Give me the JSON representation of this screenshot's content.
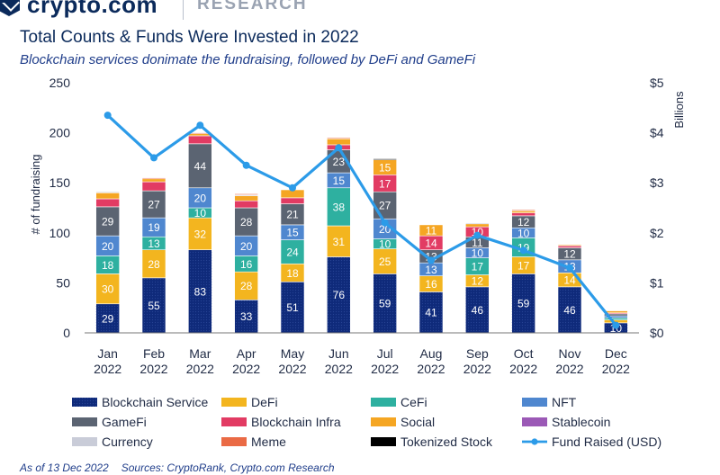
{
  "brand": {
    "name": "crypto.com",
    "section": "RESEARCH"
  },
  "title": "Total Counts & Funds Were Invested in 2022",
  "subtitle": "Blockchain services donimate the fundraising, followed by DeFi and GameFi",
  "footer": {
    "as_of": "As of 13 Dec 2022",
    "sources": "Sources: CryptoRank, Crypto.com Research"
  },
  "chart_data": {
    "type": "bar",
    "stacked": true,
    "categories": [
      "Jan\n2022",
      "Feb\n2022",
      "Mar\n2022",
      "Apr\n2022",
      "May\n2022",
      "Jun\n2022",
      "Jul\n2022",
      "Aug\n2022",
      "Sep\n2022",
      "Oct\n2022",
      "Nov\n2022",
      "Dec\n2022"
    ],
    "ylabel": "# of fundraising",
    "ylabel_right": "Billions",
    "ylim": [
      0,
      250
    ],
    "yticks": [
      0,
      50,
      100,
      150,
      200,
      250
    ],
    "ylim_right": [
      0,
      5
    ],
    "yticks_right": [
      "$0",
      "$1",
      "$2",
      "$3",
      "$4",
      "$5"
    ],
    "grid": false,
    "legend_position": "bottom",
    "series": [
      {
        "name": "Blockchain Service",
        "color": "#0f2a7a",
        "pattern": true,
        "values": [
          29,
          55,
          83,
          33,
          51,
          76,
          59,
          41,
          46,
          59,
          46,
          10
        ],
        "labels": [
          true,
          true,
          true,
          true,
          true,
          true,
          true,
          true,
          true,
          true,
          true,
          true
        ]
      },
      {
        "name": "DeFi",
        "color": "#f3b51f",
        "values": [
          30,
          28,
          32,
          28,
          18,
          31,
          25,
          16,
          12,
          17,
          14,
          3
        ],
        "labels": [
          true,
          true,
          true,
          true,
          true,
          true,
          true,
          true,
          true,
          true,
          true,
          false
        ]
      },
      {
        "name": "CeFi",
        "color": "#2eb0a0",
        "values": [
          18,
          13,
          10,
          16,
          24,
          38,
          10,
          0,
          17,
          19,
          0,
          2
        ],
        "labels": [
          true,
          true,
          true,
          true,
          true,
          true,
          true,
          false,
          true,
          true,
          false,
          false
        ]
      },
      {
        "name": "NFT",
        "color": "#4f87cf",
        "values": [
          20,
          19,
          20,
          20,
          15,
          15,
          20,
          13,
          10,
          10,
          13,
          2
        ],
        "labels": [
          true,
          true,
          true,
          true,
          true,
          true,
          true,
          true,
          true,
          true,
          true,
          false
        ]
      },
      {
        "name": "GameFi",
        "color": "#5b6472",
        "values": [
          29,
          27,
          44,
          28,
          21,
          23,
          27,
          13,
          11,
          12,
          12,
          2
        ],
        "labels": [
          true,
          true,
          true,
          true,
          true,
          true,
          true,
          true,
          true,
          true,
          true,
          false
        ]
      },
      {
        "name": "Blockchain Infra",
        "color": "#e23b63",
        "values": [
          8,
          9,
          8,
          7,
          6,
          5,
          17,
          14,
          10,
          3,
          2,
          1
        ],
        "labels": [
          false,
          false,
          false,
          false,
          false,
          false,
          true,
          true,
          true,
          false,
          false,
          false
        ]
      },
      {
        "name": "Social",
        "color": "#f5a623",
        "values": [
          6,
          3,
          2,
          5,
          8,
          6,
          15,
          11,
          3,
          2,
          1,
          2
        ],
        "labels": [
          false,
          false,
          false,
          false,
          false,
          false,
          true,
          true,
          false,
          false,
          false,
          false
        ]
      },
      {
        "name": "Stablecoin",
        "color": "#9b59b6",
        "values": [
          0,
          0,
          0,
          0,
          0,
          0,
          0,
          0,
          0,
          0,
          0,
          0
        ],
        "labels": [
          false,
          false,
          false,
          false,
          false,
          false,
          false,
          false,
          false,
          false,
          false,
          false
        ]
      },
      {
        "name": "Currency",
        "color": "#c9ccd8",
        "values": [
          1,
          0,
          0,
          1,
          0,
          0,
          0,
          0,
          1,
          0,
          0,
          0
        ],
        "labels": [
          false,
          false,
          false,
          false,
          false,
          false,
          false,
          false,
          false,
          false,
          false,
          false
        ]
      },
      {
        "name": "Meme",
        "color": "#ea6a45",
        "values": [
          0,
          1,
          1,
          1,
          0,
          1,
          0,
          0,
          0,
          1,
          0,
          0
        ],
        "labels": [
          false,
          false,
          false,
          false,
          false,
          false,
          false,
          false,
          false,
          false,
          false,
          false
        ]
      },
      {
        "name": "Tokenized Stock",
        "color": "#000000",
        "values": [
          0,
          0,
          0,
          0,
          0,
          0,
          1,
          0,
          0,
          0,
          0,
          0
        ],
        "labels": [
          false,
          false,
          false,
          false,
          false,
          false,
          false,
          false,
          false,
          false,
          false,
          false
        ]
      }
    ],
    "line_series": {
      "name": "Fund Raised (USD)",
      "color": "#2c9be8",
      "axis": "right",
      "values": [
        4.35,
        3.5,
        4.15,
        3.35,
        2.9,
        3.7,
        2.2,
        1.45,
        1.95,
        1.65,
        1.3,
        0.15
      ]
    }
  }
}
